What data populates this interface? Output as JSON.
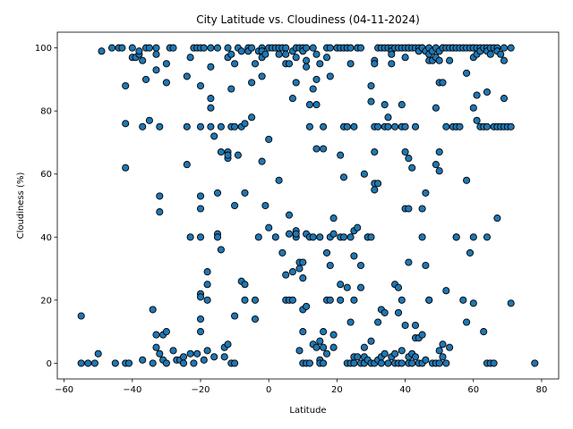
{
  "chart_data": {
    "type": "scatter",
    "title": "City Latitude vs. Cloudiness (04-11-2024)",
    "xlabel": "Latitude",
    "ylabel": "Cloudiness (%)",
    "xlim": [
      -62,
      85
    ],
    "ylim": [
      -5,
      105
    ],
    "xticks": [
      -60,
      -40,
      -20,
      0,
      20,
      40,
      60,
      80
    ],
    "yticks": [
      0,
      20,
      40,
      60,
      80,
      100
    ],
    "grid": false,
    "marker_color": "#1f77b4",
    "marker_edge": "#000000",
    "points": [
      [
        -55,
        15
      ],
      [
        -55,
        0
      ],
      [
        -53,
        0
      ],
      [
        -51,
        0
      ],
      [
        -50,
        3
      ],
      [
        -49,
        99
      ],
      [
        -46,
        100
      ],
      [
        -45,
        0
      ],
      [
        -44,
        100
      ],
      [
        -43,
        100
      ],
      [
        -42,
        88
      ],
      [
        -42,
        76
      ],
      [
        -42,
        62
      ],
      [
        -42,
        0
      ],
      [
        -41,
        0
      ],
      [
        -40,
        100
      ],
      [
        -40,
        97
      ],
      [
        -39,
        97
      ],
      [
        -38,
        98
      ],
      [
        -38,
        99
      ],
      [
        -37,
        96
      ],
      [
        -37,
        75
      ],
      [
        -37,
        1
      ],
      [
        -36,
        90
      ],
      [
        -36,
        100
      ],
      [
        -35,
        100
      ],
      [
        -35,
        77
      ],
      [
        -34,
        17
      ],
      [
        -34,
        0
      ],
      [
        -33,
        93
      ],
      [
        -33,
        98
      ],
      [
        -33,
        100
      ],
      [
        -33,
        9
      ],
      [
        -33,
        5
      ],
      [
        -32,
        75
      ],
      [
        -32,
        53
      ],
      [
        -32,
        48
      ],
      [
        -32,
        3
      ],
      [
        -31,
        9
      ],
      [
        -31,
        1
      ],
      [
        -30,
        10
      ],
      [
        -30,
        0
      ],
      [
        -30,
        89
      ],
      [
        -30,
        95
      ],
      [
        -29,
        100
      ],
      [
        -28,
        100
      ],
      [
        -28,
        4
      ],
      [
        -27,
        1
      ],
      [
        -26,
        1
      ],
      [
        -25,
        2
      ],
      [
        -25,
        0
      ],
      [
        -24,
        63
      ],
      [
        -24,
        75
      ],
      [
        -24,
        91
      ],
      [
        -23,
        97
      ],
      [
        -23,
        40
      ],
      [
        -23,
        3
      ],
      [
        -22,
        100
      ],
      [
        -22,
        0
      ],
      [
        -21,
        100
      ],
      [
        -21,
        3
      ],
      [
        -20,
        100
      ],
      [
        -20,
        88
      ],
      [
        -20,
        75
      ],
      [
        -20,
        53
      ],
      [
        -20,
        49
      ],
      [
        -20,
        40
      ],
      [
        -20,
        22
      ],
      [
        -20,
        21
      ],
      [
        -20,
        14
      ],
      [
        -20,
        10
      ],
      [
        -19,
        100
      ],
      [
        -19,
        1
      ],
      [
        -18,
        4
      ],
      [
        -18,
        29
      ],
      [
        -18,
        25
      ],
      [
        -18,
        20
      ],
      [
        -17,
        100
      ],
      [
        -17,
        94
      ],
      [
        -17,
        84
      ],
      [
        -17,
        81
      ],
      [
        -17,
        75
      ],
      [
        -16,
        72
      ],
      [
        -16,
        2
      ],
      [
        -15,
        100
      ],
      [
        -15,
        54
      ],
      [
        -15,
        41
      ],
      [
        -15,
        40
      ],
      [
        -14,
        67
      ],
      [
        -14,
        36
      ],
      [
        -14,
        75
      ],
      [
        -13,
        5
      ],
      [
        -13,
        2
      ],
      [
        -12,
        100
      ],
      [
        -12,
        97
      ],
      [
        -12,
        67
      ],
      [
        -12,
        65
      ],
      [
        -12,
        66
      ],
      [
        -12,
        6
      ],
      [
        -11,
        0
      ],
      [
        -11,
        98
      ],
      [
        -11,
        87
      ],
      [
        -11,
        75
      ],
      [
        -10,
        95
      ],
      [
        -10,
        75
      ],
      [
        -10,
        50
      ],
      [
        -10,
        15
      ],
      [
        -10,
        0
      ],
      [
        -9,
        100
      ],
      [
        -9,
        66
      ],
      [
        -8,
        99
      ],
      [
        -8,
        26
      ],
      [
        -8,
        75
      ],
      [
        -7,
        76
      ],
      [
        -7,
        54
      ],
      [
        -7,
        25
      ],
      [
        -7,
        20
      ],
      [
        -6,
        100
      ],
      [
        -6,
        99
      ],
      [
        -5,
        89
      ],
      [
        -5,
        78
      ],
      [
        -5,
        100
      ],
      [
        -4,
        95
      ],
      [
        -4,
        20
      ],
      [
        -4,
        14
      ],
      [
        -3,
        99
      ],
      [
        -3,
        40
      ],
      [
        -2,
        100
      ],
      [
        -2,
        99
      ],
      [
        -2,
        91
      ],
      [
        -2,
        64
      ],
      [
        -2,
        97
      ],
      [
        -1,
        50
      ],
      [
        -1,
        98
      ],
      [
        0,
        100
      ],
      [
        0,
        43
      ],
      [
        0,
        71
      ],
      [
        1,
        100
      ],
      [
        2,
        100
      ],
      [
        2,
        40
      ],
      [
        3,
        98
      ],
      [
        3,
        58
      ],
      [
        3,
        100
      ],
      [
        4,
        100
      ],
      [
        4,
        35
      ],
      [
        5,
        100
      ],
      [
        5,
        95
      ],
      [
        5,
        98
      ],
      [
        5,
        28
      ],
      [
        5,
        20
      ],
      [
        6,
        95
      ],
      [
        6,
        47
      ],
      [
        6,
        20
      ],
      [
        6,
        41
      ],
      [
        7,
        99
      ],
      [
        7,
        84
      ],
      [
        7,
        29
      ],
      [
        7,
        20
      ],
      [
        8,
        100
      ],
      [
        8,
        89
      ],
      [
        8,
        42
      ],
      [
        8,
        40
      ],
      [
        8,
        97
      ],
      [
        8,
        41
      ],
      [
        9,
        100
      ],
      [
        9,
        32
      ],
      [
        9,
        30
      ],
      [
        9,
        4
      ],
      [
        10,
        100
      ],
      [
        10,
        99
      ],
      [
        10,
        32
      ],
      [
        10,
        27
      ],
      [
        10,
        17
      ],
      [
        10,
        0
      ],
      [
        10,
        10
      ],
      [
        11,
        0
      ],
      [
        11,
        96
      ],
      [
        11,
        94
      ],
      [
        11,
        41
      ],
      [
        11,
        18
      ],
      [
        11,
        100
      ],
      [
        12,
        82
      ],
      [
        12,
        75
      ],
      [
        12,
        40
      ],
      [
        12,
        0
      ],
      [
        13,
        100
      ],
      [
        13,
        87
      ],
      [
        13,
        40
      ],
      [
        13,
        6
      ],
      [
        14,
        82
      ],
      [
        14,
        90
      ],
      [
        14,
        98
      ],
      [
        14,
        68
      ],
      [
        14,
        5
      ],
      [
        15,
        95
      ],
      [
        15,
        40
      ],
      [
        15,
        7
      ],
      [
        15,
        1
      ],
      [
        15,
        0
      ],
      [
        16,
        75
      ],
      [
        16,
        68
      ],
      [
        16,
        10
      ],
      [
        16,
        5
      ],
      [
        16,
        0
      ],
      [
        17,
        100
      ],
      [
        17,
        97
      ],
      [
        17,
        35
      ],
      [
        17,
        20
      ],
      [
        17,
        3
      ],
      [
        18,
        100
      ],
      [
        18,
        91
      ],
      [
        18,
        40
      ],
      [
        18,
        31
      ],
      [
        18,
        20
      ],
      [
        19,
        9
      ],
      [
        19,
        5
      ],
      [
        19,
        46
      ],
      [
        19,
        41
      ],
      [
        20,
        100
      ],
      [
        20,
        100
      ],
      [
        21,
        100
      ],
      [
        21,
        66
      ],
      [
        21,
        40
      ],
      [
        21,
        25
      ],
      [
        21,
        20
      ],
      [
        22,
        100
      ],
      [
        22,
        59
      ],
      [
        22,
        40
      ],
      [
        22,
        75
      ],
      [
        23,
        100
      ],
      [
        23,
        100
      ],
      [
        23,
        75
      ],
      [
        23,
        24
      ],
      [
        23,
        0
      ],
      [
        24,
        100
      ],
      [
        24,
        95
      ],
      [
        24,
        40
      ],
      [
        24,
        13
      ],
      [
        24,
        0
      ],
      [
        25,
        75
      ],
      [
        25,
        42
      ],
      [
        25,
        20
      ],
      [
        25,
        34
      ],
      [
        25,
        2
      ],
      [
        25,
        0
      ],
      [
        26,
        100
      ],
      [
        26,
        100
      ],
      [
        26,
        43
      ],
      [
        26,
        2
      ],
      [
        27,
        100
      ],
      [
        27,
        31
      ],
      [
        27,
        24
      ],
      [
        27,
        0
      ],
      [
        28,
        60
      ],
      [
        28,
        5
      ],
      [
        28,
        2
      ],
      [
        28,
        0
      ],
      [
        29,
        40
      ],
      [
        29,
        40
      ],
      [
        29,
        1
      ],
      [
        30,
        88
      ],
      [
        30,
        83
      ],
      [
        30,
        40
      ],
      [
        30,
        7
      ],
      [
        30,
        0
      ],
      [
        31,
        75
      ],
      [
        31,
        67
      ],
      [
        31,
        96
      ],
      [
        31,
        95
      ],
      [
        31,
        57
      ],
      [
        31,
        55
      ],
      [
        31,
        0
      ],
      [
        32,
        100
      ],
      [
        32,
        75
      ],
      [
        32,
        57
      ],
      [
        32,
        13
      ],
      [
        32,
        1
      ],
      [
        33,
        100
      ],
      [
        33,
        17
      ],
      [
        33,
        2
      ],
      [
        33,
        0
      ],
      [
        34,
        100
      ],
      [
        34,
        16
      ],
      [
        34,
        3
      ],
      [
        34,
        82
      ],
      [
        34,
        75
      ],
      [
        35,
        100
      ],
      [
        35,
        78
      ],
      [
        35,
        75
      ],
      [
        35,
        0
      ],
      [
        36,
        100
      ],
      [
        36,
        99
      ],
      [
        36,
        98
      ],
      [
        36,
        95
      ],
      [
        36,
        2
      ],
      [
        37,
        100
      ],
      [
        37,
        75
      ],
      [
        37,
        25
      ],
      [
        37,
        3
      ],
      [
        37,
        0
      ],
      [
        38,
        100
      ],
      [
        38,
        24
      ],
      [
        38,
        16
      ],
      [
        38,
        0
      ],
      [
        39,
        100
      ],
      [
        39,
        82
      ],
      [
        39,
        75
      ],
      [
        39,
        20
      ],
      [
        39,
        4
      ],
      [
        39,
        0
      ],
      [
        40,
        100
      ],
      [
        40,
        97
      ],
      [
        40,
        75
      ],
      [
        40,
        67
      ],
      [
        40,
        49
      ],
      [
        40,
        12
      ],
      [
        41,
        100
      ],
      [
        41,
        100
      ],
      [
        41,
        65
      ],
      [
        41,
        49
      ],
      [
        41,
        32
      ],
      [
        41,
        2
      ],
      [
        41,
        0
      ],
      [
        42,
        100
      ],
      [
        42,
        62
      ],
      [
        42,
        3
      ],
      [
        42,
        0
      ],
      [
        43,
        100
      ],
      [
        43,
        75
      ],
      [
        43,
        12
      ],
      [
        43,
        8
      ],
      [
        43,
        2
      ],
      [
        44,
        100
      ],
      [
        44,
        99
      ],
      [
        44,
        8
      ],
      [
        44,
        0
      ],
      [
        45,
        100
      ],
      [
        45,
        100
      ],
      [
        45,
        49
      ],
      [
        45,
        40
      ],
      [
        45,
        9
      ],
      [
        45,
        0
      ],
      [
        46,
        99
      ],
      [
        46,
        54
      ],
      [
        46,
        31
      ],
      [
        46,
        1
      ],
      [
        47,
        100
      ],
      [
        47,
        98
      ],
      [
        47,
        96
      ],
      [
        47,
        20
      ],
      [
        47,
        20
      ],
      [
        48,
        99
      ],
      [
        48,
        96
      ],
      [
        48,
        0
      ],
      [
        49,
        100
      ],
      [
        49,
        97
      ],
      [
        49,
        81
      ],
      [
        49,
        63
      ],
      [
        49,
        0
      ],
      [
        50,
        99
      ],
      [
        50,
        96
      ],
      [
        50,
        89
      ],
      [
        50,
        67
      ],
      [
        50,
        61
      ],
      [
        50,
        4
      ],
      [
        50,
        0
      ],
      [
        51,
        100
      ],
      [
        51,
        100
      ],
      [
        51,
        89
      ],
      [
        51,
        6
      ],
      [
        51,
        2
      ],
      [
        52,
        100
      ],
      [
        52,
        75
      ],
      [
        52,
        23
      ],
      [
        52,
        0
      ],
      [
        53,
        100
      ],
      [
        53,
        96
      ],
      [
        53,
        5
      ],
      [
        54,
        100
      ],
      [
        54,
        100
      ],
      [
        54,
        75
      ],
      [
        55,
        100
      ],
      [
        55,
        75
      ],
      [
        55,
        40
      ],
      [
        55,
        40
      ],
      [
        56,
        100
      ],
      [
        56,
        75
      ],
      [
        57,
        100
      ],
      [
        57,
        20
      ],
      [
        58,
        100
      ],
      [
        58,
        58
      ],
      [
        58,
        13
      ],
      [
        58,
        92
      ],
      [
        59,
        100
      ],
      [
        59,
        35
      ],
      [
        60,
        100
      ],
      [
        60,
        100
      ],
      [
        60,
        97
      ],
      [
        60,
        81
      ],
      [
        60,
        40
      ],
      [
        60,
        19
      ],
      [
        61,
        98
      ],
      [
        61,
        77
      ],
      [
        61,
        100
      ],
      [
        61,
        85
      ],
      [
        62,
        100
      ],
      [
        62,
        99
      ],
      [
        62,
        75
      ],
      [
        63,
        100
      ],
      [
        63,
        75
      ],
      [
        63,
        10
      ],
      [
        64,
        100
      ],
      [
        64,
        99
      ],
      [
        64,
        86
      ],
      [
        64,
        40
      ],
      [
        64,
        75
      ],
      [
        64,
        0
      ],
      [
        65,
        100
      ],
      [
        65,
        98
      ],
      [
        65,
        0
      ],
      [
        66,
        100
      ],
      [
        66,
        75
      ],
      [
        66,
        0
      ],
      [
        67,
        100
      ],
      [
        67,
        99
      ],
      [
        67,
        75
      ],
      [
        67,
        46
      ],
      [
        68,
        98
      ],
      [
        68,
        75
      ],
      [
        69,
        100
      ],
      [
        69,
        96
      ],
      [
        69,
        84
      ],
      [
        69,
        75
      ],
      [
        70,
        75
      ],
      [
        71,
        100
      ],
      [
        71,
        75
      ],
      [
        71,
        19
      ],
      [
        78,
        0
      ]
    ]
  }
}
